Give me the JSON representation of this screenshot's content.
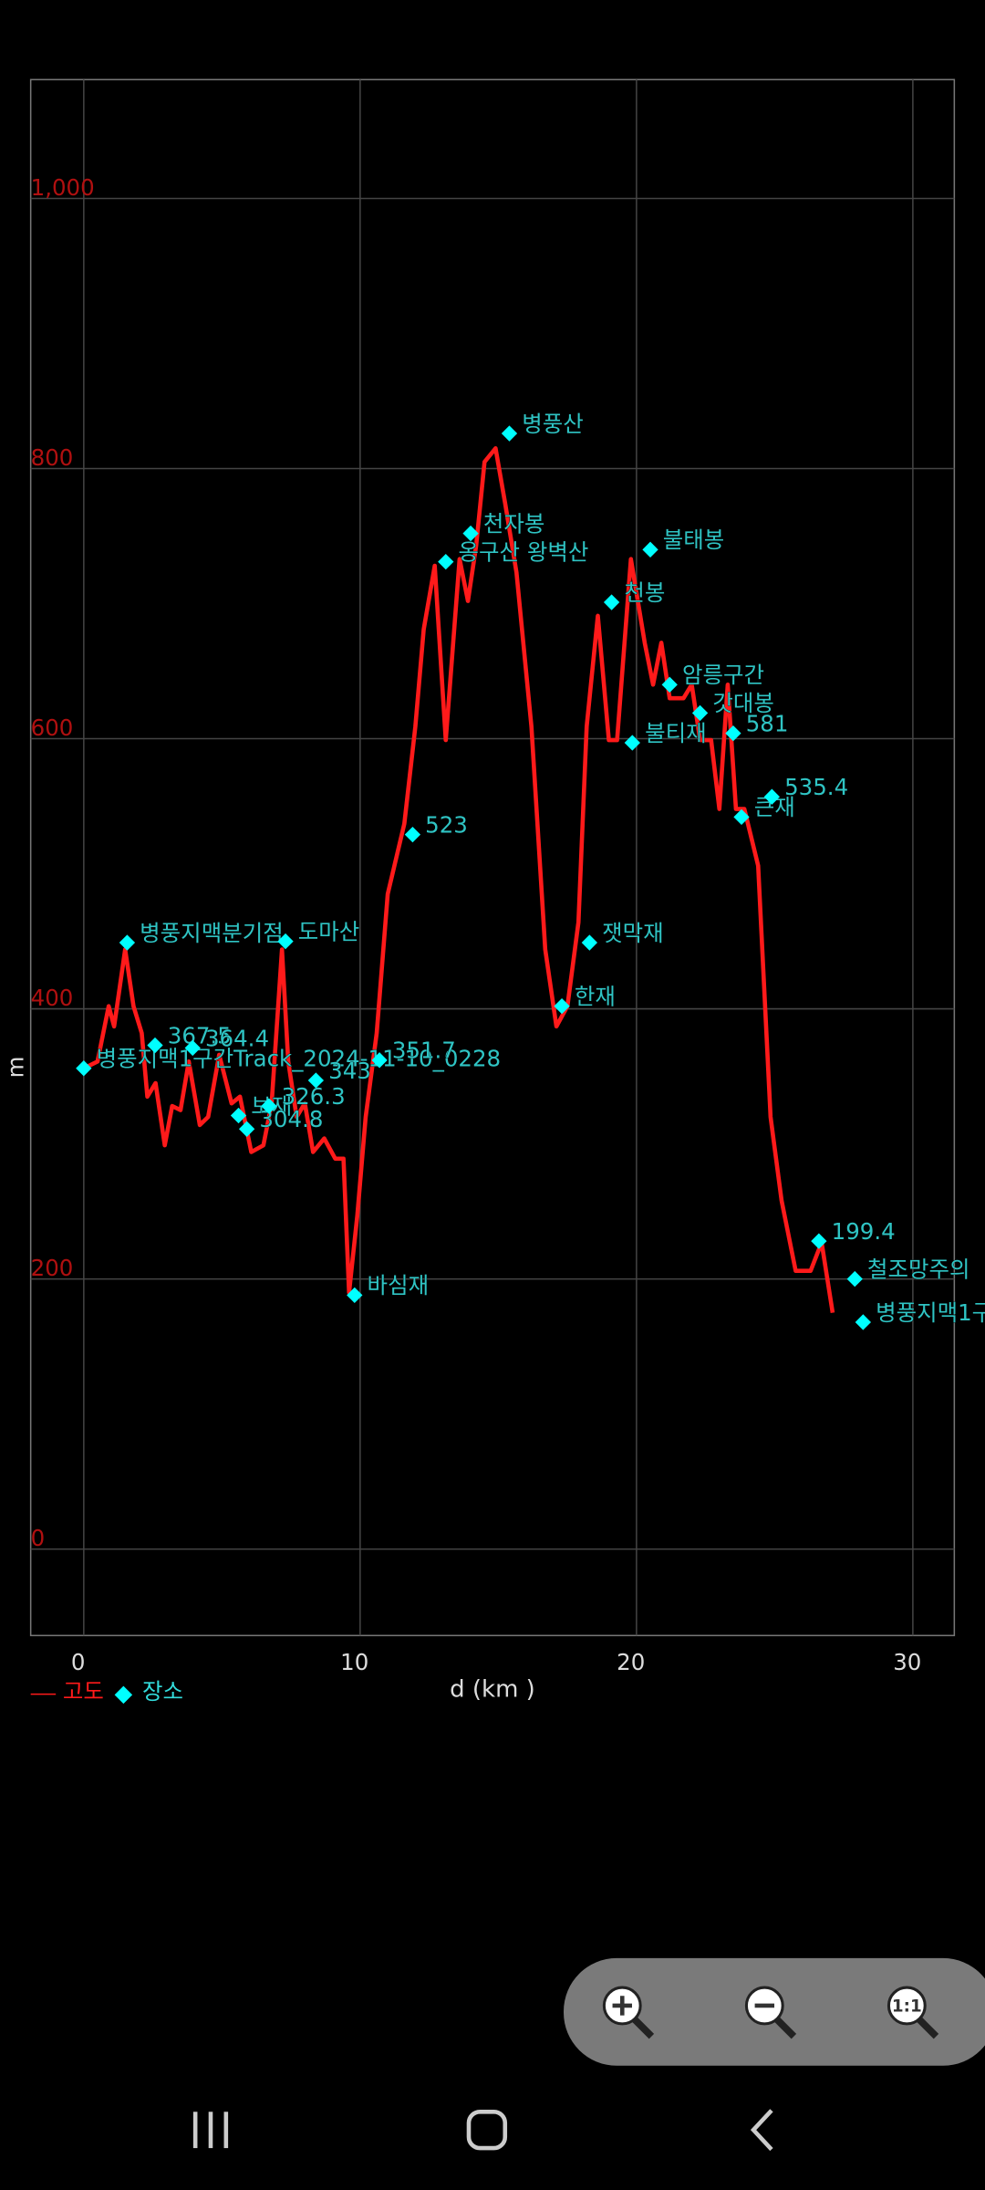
{
  "chart_data": {
    "type": "line",
    "x_label": "d (km )",
    "y_label": "m",
    "xlim": [
      -1.92,
      31.5
    ],
    "ylim": [
      -64,
      1088
    ],
    "xticks": [
      0,
      10,
      20,
      30
    ],
    "yticks": [
      0,
      200,
      400,
      600,
      800,
      {
        "value": 1000,
        "label": "1,000"
      }
    ],
    "grid": true,
    "series": [
      {
        "name": "고도",
        "type": "line",
        "color": "#ff1a1a",
        "x": [
          0,
          0.5,
          0.9,
          1.1,
          1.5,
          1.8,
          2.1,
          2.3,
          2.6,
          2.93,
          3.2,
          3.5,
          3.8,
          4.2,
          4.5,
          4.9,
          5.35,
          5.65,
          6.06,
          6.5,
          6.8,
          7.17,
          7.4,
          7.7,
          8.0,
          8.3,
          8.7,
          9.1,
          9.4,
          9.6,
          9.9,
          10.2,
          10.6,
          11.0,
          11.6,
          12.0,
          12.3,
          12.7,
          13.1,
          13.6,
          13.9,
          14.2,
          14.5,
          14.9,
          15.25,
          15.66,
          16.2,
          16.7,
          17.1,
          17.5,
          17.9,
          18.2,
          18.6,
          19.0,
          19.3,
          19.8,
          20.3,
          20.6,
          20.9,
          21.2,
          21.7,
          22.0,
          22.3,
          22.7,
          23.0,
          23.3,
          23.6,
          23.9,
          24.4,
          24.85,
          25.25,
          25.76,
          26.3,
          26.7,
          27.1
        ],
        "values": [
          356,
          361,
          402,
          387,
          444,
          402,
          382,
          335,
          345,
          299,
          328,
          325,
          361,
          314,
          320,
          366,
          330,
          335,
          294,
          299,
          330,
          444,
          361,
          320,
          330,
          294,
          304,
          289,
          289,
          190,
          247,
          320,
          382,
          485,
          537,
          609,
          681,
          728,
          599,
          733,
          702,
          743,
          805,
          815,
          774,
          723,
          609,
          444,
          387,
          402,
          464,
          609,
          691,
          599,
          599,
          733,
          671,
          640,
          671,
          630,
          630,
          640,
          599,
          599,
          548,
          640,
          548,
          548,
          506,
          320,
          258,
          206,
          206,
          227,
          175
        ]
      },
      {
        "name": "장소",
        "type": "scatter",
        "color": "#00ffff",
        "x": [
          0,
          1.57,
          2.58,
          3.94,
          5.6,
          5.9,
          6.7,
          7.3,
          8.4,
          9.8,
          10.7,
          11.9,
          13.1,
          14.0,
          15.4,
          17.3,
          18.3,
          19.1,
          19.85,
          20.5,
          21.2,
          22.3,
          23.5,
          23.8,
          24.9,
          26.6,
          27.9,
          28.2
        ],
        "values": [
          356,
          449,
          373,
          371,
          321,
          311,
          328,
          450,
          347,
          188,
          362,
          529,
          731,
          752,
          826,
          402,
          449,
          701,
          597,
          740,
          640,
          619,
          604,
          542,
          557,
          228,
          200,
          168
        ],
        "labels": [
          "병풍지맥1구간Track_2024-11-10_0228",
          "병풍지맥분기점",
          "367.5",
          "364.4",
          "보재",
          "304.8",
          "326.3",
          "도마산",
          "343",
          "바심재",
          "351.7",
          "523",
          "옹구산 왕벽산",
          "천자봉",
          "병풍산",
          "한재",
          "잿막재",
          "천봉",
          "불티재",
          "불태봉",
          "암릉구간",
          "갓대봉",
          "581",
          "큰재",
          "535.4",
          "199.4",
          "철조망주의",
          "병풍지맥1구"
        ]
      }
    ]
  },
  "zoom_controls": {
    "reset_label": "1:1"
  }
}
